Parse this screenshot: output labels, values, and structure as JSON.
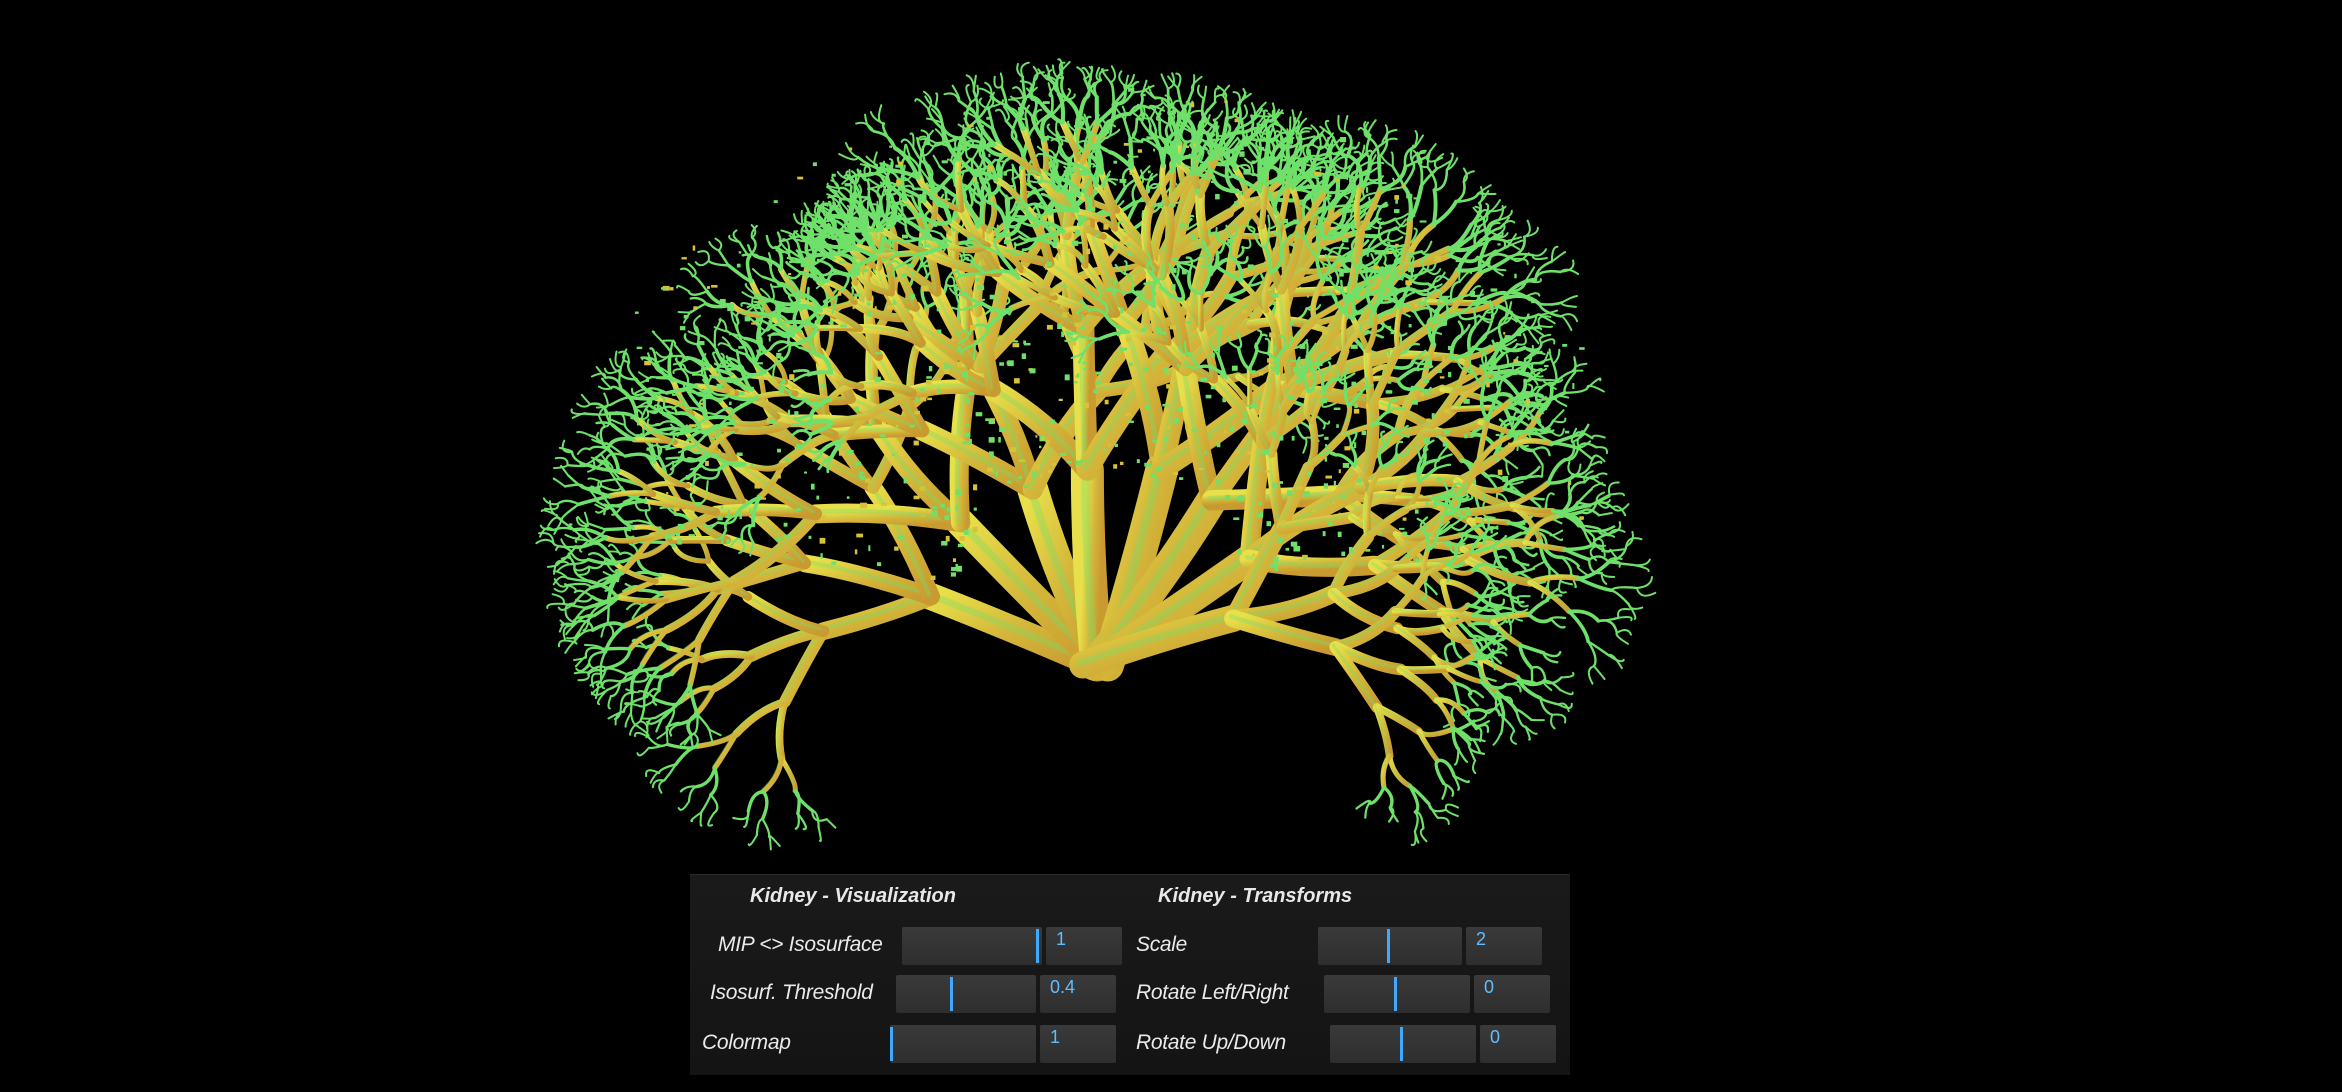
{
  "scene": {
    "subject": "kidney-vasculature-isosurface",
    "background_color": "#000000",
    "vessel_color": "#d8c23a",
    "capillary_color": "#6fe06a"
  },
  "panel": {
    "visualization": {
      "title": "Kidney - Visualization",
      "controls": [
        {
          "label": "MIP <> Isosurface",
          "value": "1",
          "fraction": 1.0
        },
        {
          "label": "Isosurf. Threshold",
          "value": "0.4",
          "fraction": 0.4
        },
        {
          "label": "Colormap",
          "value": "1",
          "fraction": 0.0
        }
      ]
    },
    "transforms": {
      "title": "Kidney - Transforms",
      "controls": [
        {
          "label": "Scale",
          "value": "2",
          "fraction": 0.5
        },
        {
          "label": "Rotate Left/Right",
          "value": "0",
          "fraction": 0.5
        },
        {
          "label": "Rotate Up/Down",
          "value": "0",
          "fraction": 0.5
        }
      ]
    },
    "accent_color": "#3fa9ff"
  }
}
